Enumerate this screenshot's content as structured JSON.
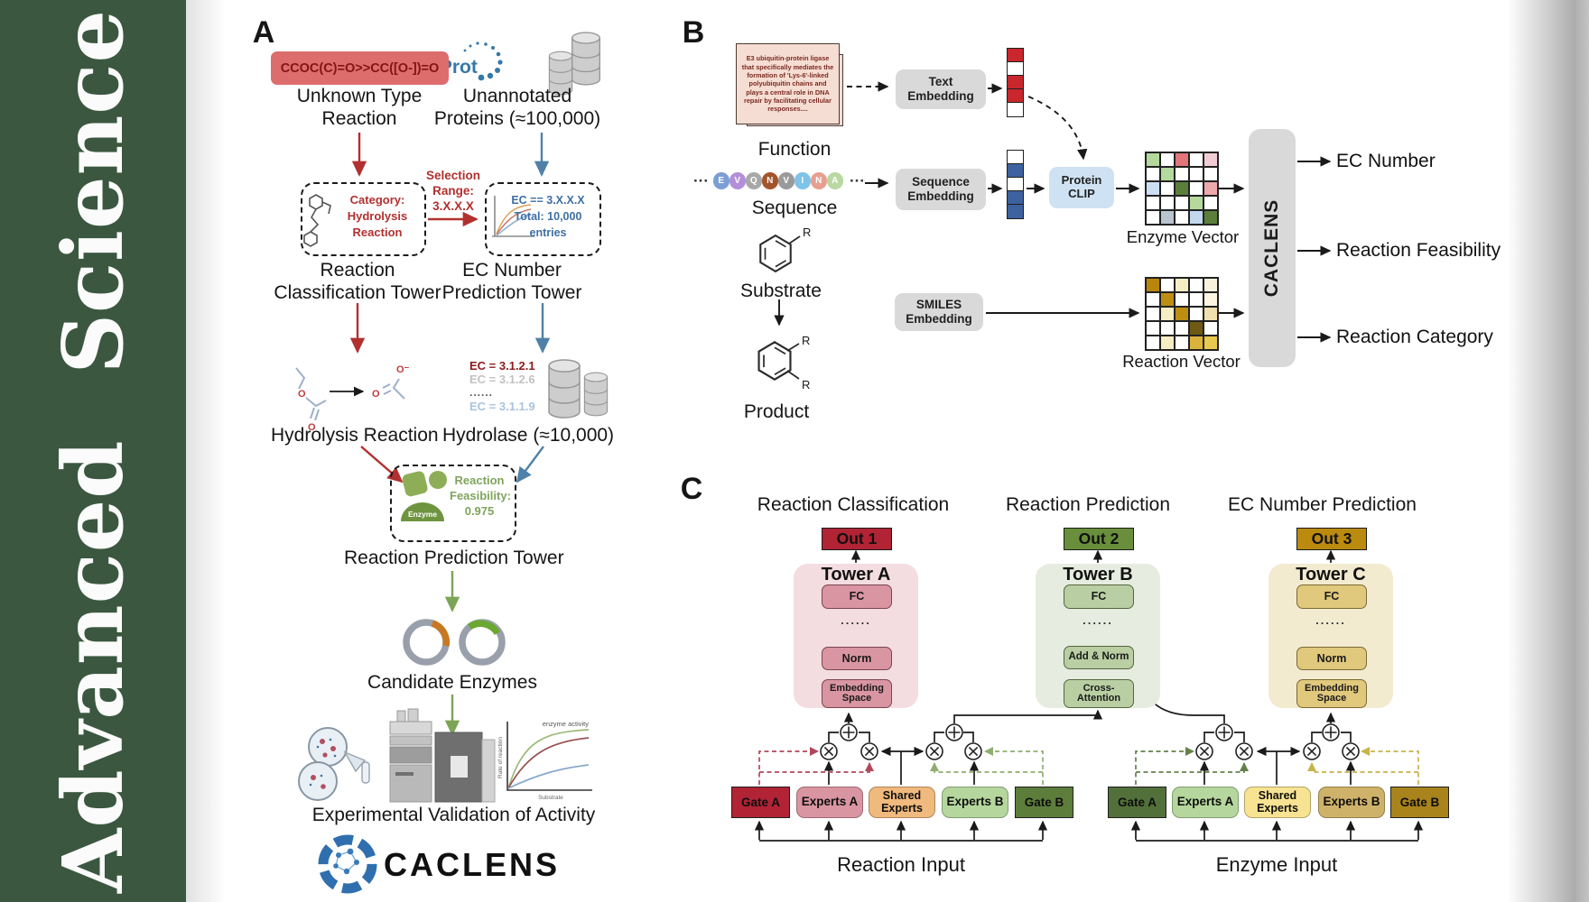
{
  "journal": {
    "name": "Advanced Science",
    "band_color": "#3b5740"
  },
  "colors": {
    "red_accent": "#b23030",
    "blue_accent": "#4f81a8",
    "green_accent": "#7da456",
    "out1": "#b22335",
    "out2": "#6a8f3c",
    "out3": "#bb8b10",
    "tower_a": "#f3dde1",
    "tower_b": "#e6ecdf",
    "tower_c": "#f3ebd0",
    "gate_a_left": "#b22335",
    "gate_b_left": "#5d7e3b",
    "gate_a_right": "#52703a",
    "gate_b_right": "#a9831c",
    "shared_left": "#f0b97d",
    "shared_right": "#f7e392"
  },
  "panelA": {
    "label": "A",
    "smiles": "CCOC(C)=O>>CC([O-])=O",
    "unknown_reaction": "Unknown Type\nReaction",
    "uniprot": "UniProt",
    "unannotated": "Unannotated\nProteins (≈100,000)",
    "category_box": "Category:\nHydrolysis\nReaction",
    "selection": "Selection\nRange:\n3.X.X.X",
    "ec_filter_box": "EC == 3.X.X.X\nTotal: 10,000\nentries",
    "classification_tower": "Reaction\nClassification Tower",
    "ec_tower": "EC Number\nPrediction Tower",
    "hydrolysis": "Hydrolysis Reaction",
    "ec_list": [
      "EC = 3.1.2.1",
      "EC = 3.1.2.6",
      "......",
      "EC = 3.1.1.9"
    ],
    "hydrolase": "Hydrolase (≈10,000)",
    "enzyme": "Enzyme",
    "feasibility": "Reaction\nFeasibility:\n0.975",
    "prediction_tower": "Reaction Prediction Tower",
    "candidates": "Candidate Enzymes",
    "validation": "Experimental Validation of Activity",
    "graph": {
      "ylabel": "Rate of reaction",
      "xlabel": "Substrate",
      "annotation": "enzyme activity"
    },
    "logo": "CACLENS"
  },
  "panelB": {
    "label": "B",
    "function_card": "E3 ubiquitin-protein ligase that specifically mediates the formation of 'Lys-6'-linked polyubiquitin chains and plays a central role in DNA repair by facilitating cellular responses....",
    "function": "Function",
    "ellipsis": "···",
    "residues": [
      {
        "letter": "E",
        "color": "#7b9fd4"
      },
      {
        "letter": "V",
        "color": "#b48fd9"
      },
      {
        "letter": "Q",
        "color": "#a8a8a8"
      },
      {
        "letter": "N",
        "color": "#a3542a"
      },
      {
        "letter": "V",
        "color": "#9a9a9a"
      },
      {
        "letter": "I",
        "color": "#7fc3e8"
      },
      {
        "letter": "N",
        "color": "#e89f8f"
      },
      {
        "letter": "A",
        "color": "#b9d8a2"
      }
    ],
    "sequence": "Sequence",
    "substrate": "Substrate",
    "product": "Product",
    "r_group": "R",
    "text_embedding": "Text\nEmbedding",
    "sequence_embedding": "Sequence\nEmbedding",
    "smiles_embedding": "SMILES\nEmbedding",
    "protein_clip": "Protein\nCLIP",
    "text_vector": [
      "#c9272d",
      "#ffffff",
      "#c9272d",
      "#c9272d",
      "#ffffff"
    ],
    "sequence_vector": [
      "#ffffff",
      "#3c62a0",
      "#ffffff",
      "#3c62a0",
      "#3c62a0"
    ],
    "enzyme_vector_label": "Enzyme Vector",
    "reaction_vector_label": "Reaction Vector",
    "enzyme_grid": [
      [
        "#b5d99c",
        "#ffffff",
        "#e0757a",
        "#ffffff",
        "#f2ccd4"
      ],
      [
        "#ffffff",
        "#b5d99c",
        "#ffffff",
        "#ffffff",
        "#ffffff"
      ],
      [
        "#ccdff2",
        "#ffffff",
        "#5b7f3b",
        "#ffffff",
        "#eea9ad"
      ],
      [
        "#ffffff",
        "#ffffff",
        "#ffffff",
        "#b5d99c",
        "#ffffff"
      ],
      [
        "#ffffff",
        "#b9c4cf",
        "#ffffff",
        "#c3d8ef",
        "#5b7f3b"
      ]
    ],
    "reaction_grid": [
      [
        "#b8860b",
        "#ffffff",
        "#f6edc4",
        "#ffffff",
        "#faf3dc"
      ],
      [
        "#ffffff",
        "#bd8e12",
        "#ffffff",
        "#ffffff",
        "#fcf6e3"
      ],
      [
        "#ffffff",
        "#f6edc4",
        "#bd8e12",
        "#ffffff",
        "#f0dfae"
      ],
      [
        "#ffffff",
        "#ffffff",
        "#ffffff",
        "#6e5a14",
        "#ffffff"
      ],
      [
        "#ffffff",
        "#f6edc4",
        "#ffffff",
        "#d9b33c",
        "#e8c94f"
      ]
    ],
    "caclens": "CACLENS",
    "outputs": [
      "EC Number",
      "Reaction Feasibility",
      "Reaction Category"
    ]
  },
  "panelC": {
    "label": "C",
    "columns": [
      {
        "title": "Reaction Classification",
        "out": "Out 1",
        "tower": "Tower A",
        "fc": "FC",
        "dots": "......",
        "norm": "Norm",
        "bottom": "Embedding\nSpace"
      },
      {
        "title": "Reaction Prediction",
        "out": "Out 2",
        "tower": "Tower B",
        "fc": "FC",
        "dots": "......",
        "norm": "Add & Norm",
        "bottom": "Cross-\nAttention"
      },
      {
        "title": "EC Number Prediction",
        "out": "Out 3",
        "tower": "Tower C",
        "fc": "FC",
        "dots": "......",
        "norm": "Norm",
        "bottom": "Embedding\nSpace"
      }
    ],
    "moe": [
      {
        "input": "Reaction Input",
        "gate_a": "Gate A",
        "experts_a": "Experts A",
        "shared": "Shared\nExperts",
        "experts_b": "Experts B",
        "gate_b": "Gate B"
      },
      {
        "input": "Enzyme Input",
        "gate_a": "Gate A",
        "experts_a": "Experts A",
        "shared": "Shared\nExperts",
        "experts_b": "Experts B",
        "gate_b": "Gate B"
      }
    ]
  }
}
